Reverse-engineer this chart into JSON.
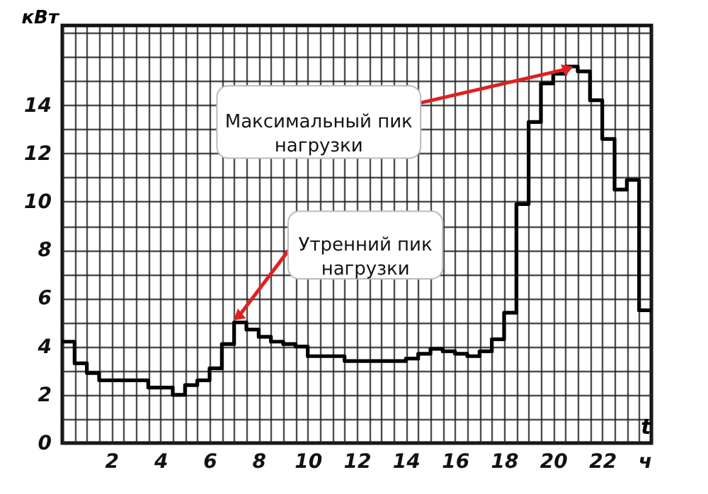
{
  "chart_data": {
    "type": "step",
    "xlabel": "t",
    "ylabel": "кВт",
    "x": [
      0,
      0.5,
      1,
      1.5,
      3.5,
      4.5,
      5,
      5.5,
      6,
      6.5,
      7,
      7.5,
      8,
      8.5,
      9,
      9.5,
      10,
      11.5,
      14,
      14.5,
      15,
      15.5,
      16,
      16.5,
      17,
      17.5,
      18,
      18.5,
      19,
      19.5,
      20,
      20.5,
      21,
      21.5,
      22,
      22.5,
      23,
      23.5,
      24
    ],
    "series": [
      {
        "color": "#000000",
        "values": [
          4.2,
          3.3,
          2.9,
          2.6,
          2.3,
          2.0,
          2.4,
          2.6,
          3.1,
          4.1,
          5.0,
          4.7,
          4.4,
          4.2,
          4.1,
          4.0,
          3.6,
          3.4,
          3.5,
          3.7,
          3.9,
          3.8,
          3.7,
          3.6,
          3.8,
          4.3,
          5.4,
          9.9,
          13.3,
          14.9,
          15.3,
          15.6,
          15.4,
          14.2,
          12.6,
          10.5,
          10.9,
          5.5,
          5.5
        ]
      }
    ],
    "xlim": [
      0,
      24
    ],
    "ylim": [
      0,
      17.3
    ],
    "xticks": [
      {
        "value": 0,
        "label": null
      },
      {
        "value": 0.5,
        "label": null
      },
      {
        "value": 1,
        "label": null
      },
      {
        "value": 1.5,
        "label": null
      },
      2,
      {
        "value": 2.5,
        "label": null
      },
      {
        "value": 3,
        "label": null
      },
      {
        "value": 3.5,
        "label": null
      },
      4,
      {
        "value": 4.5,
        "label": null
      },
      {
        "value": 5,
        "label": null
      },
      {
        "value": 5.5,
        "label": null
      },
      6,
      {
        "value": 6.5,
        "label": null
      },
      {
        "value": 7,
        "label": null
      },
      {
        "value": 7.5,
        "label": null
      },
      8,
      {
        "value": 8.5,
        "label": null
      },
      {
        "value": 9,
        "label": null
      },
      {
        "value": 9.5,
        "label": null
      },
      10,
      {
        "value": 10.5,
        "label": null
      },
      {
        "value": 11,
        "label": null
      },
      {
        "value": 11.5,
        "label": null
      },
      12,
      {
        "value": 12.5,
        "label": null
      },
      {
        "value": 13,
        "label": null
      },
      {
        "value": 13.5,
        "label": null
      },
      14,
      {
        "value": 14.5,
        "label": null
      },
      {
        "value": 15,
        "label": null
      },
      {
        "value": 15.5,
        "label": null
      },
      16,
      {
        "value": 16.5,
        "label": null
      },
      {
        "value": 17,
        "label": null
      },
      {
        "value": 17.5,
        "label": null
      },
      18,
      {
        "value": 18.5,
        "label": null
      },
      {
        "value": 19,
        "label": null
      },
      {
        "value": 19.5,
        "label": null
      },
      20,
      {
        "value": 20.5,
        "label": null
      },
      {
        "value": 21,
        "label": null
      },
      {
        "value": 21.5,
        "label": null
      },
      22,
      {
        "value": 22.5,
        "label": null
      },
      {
        "value": 23,
        "label": null
      },
      {
        "value": 23.5,
        "label": null
      },
      {
        "value": 24,
        "label": "ч"
      }
    ],
    "yticks": [
      0,
      {
        "value": 1,
        "label": null
      },
      2,
      {
        "value": 3,
        "label": null
      },
      4,
      {
        "value": 5,
        "label": null
      },
      6,
      {
        "value": 7,
        "label": null
      },
      8,
      {
        "value": 9,
        "label": null
      },
      10,
      {
        "value": 11,
        "label": null
      },
      12,
      {
        "value": 13,
        "label": null
      },
      14,
      {
        "value": 15,
        "label": null
      },
      {
        "value": 16,
        "label": null
      },
      {
        "value": 17,
        "label": null
      }
    ],
    "grid": true,
    "marker": "none",
    "line_style": "solid",
    "annotations": [
      {
        "text": "Максимальный пик нагрузки",
        "x": 21,
        "y": 15.6
      },
      {
        "text": "Утренний пик нагрузки",
        "x": 7,
        "y": 5.0
      }
    ]
  }
}
